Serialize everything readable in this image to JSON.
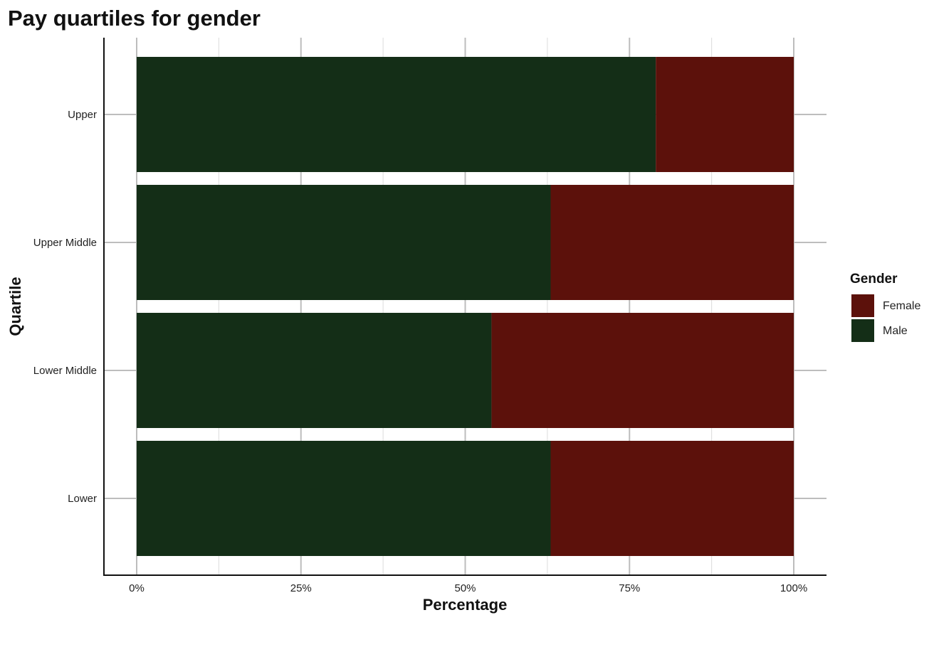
{
  "chart_data": {
    "type": "bar",
    "orientation": "horizontal",
    "stacked": true,
    "title": "Pay quartiles for gender",
    "xlabel": "Percentage",
    "ylabel": "Quartile",
    "xlim": [
      0,
      100
    ],
    "x_ticks": [
      "0%",
      "25%",
      "50%",
      "75%",
      "100%"
    ],
    "categories": [
      "Upper",
      "Upper Middle",
      "Lower Middle",
      "Lower"
    ],
    "series": [
      {
        "name": "Male",
        "color": "#142e17",
        "values": [
          79,
          63,
          54,
          63
        ]
      },
      {
        "name": "Female",
        "color": "#5c110b",
        "values": [
          21,
          37,
          46,
          37
        ]
      }
    ],
    "legend": {
      "title": "Gender",
      "placement": "right",
      "entries": [
        {
          "label": "Female",
          "color": "#5c110b"
        },
        {
          "label": "Male",
          "color": "#142e17"
        }
      ]
    },
    "grid": true
  }
}
